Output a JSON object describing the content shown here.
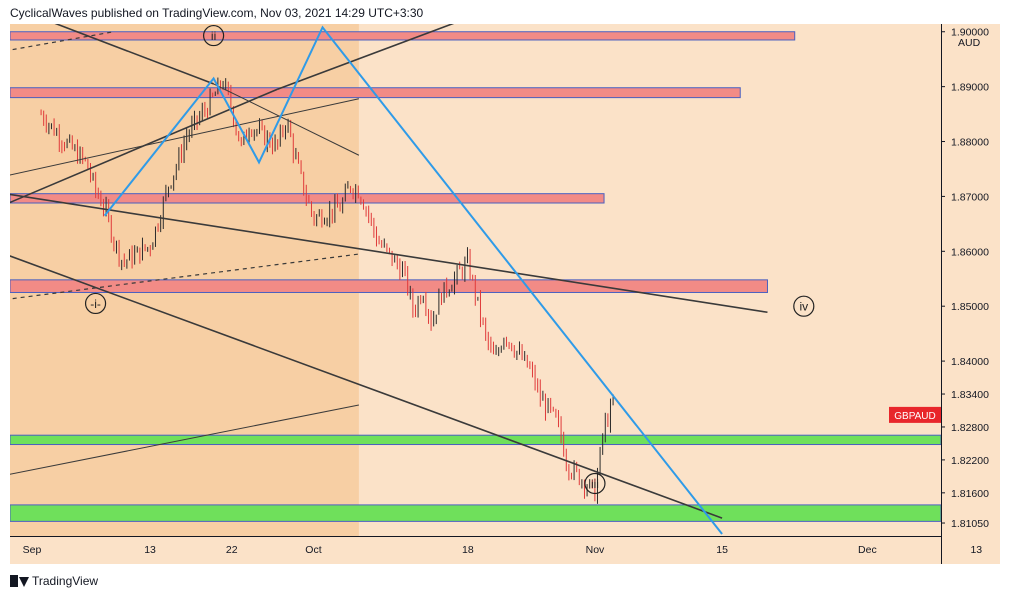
{
  "header": {
    "text": "CyclicalWaves published on TradingView.com, Nov 03, 2021 14:29 UTC+3:30"
  },
  "footer": {
    "brand": "TradingView"
  },
  "colors": {
    "background": "#fbe2c8",
    "shaded_region": "#f7cfa4",
    "candle_up": "#2b2b2b",
    "candle_down": "#e03a3a",
    "resistance_zone": "#f28b86",
    "support_zone": "#6fe05b",
    "trendline_blue": "#2f9be8",
    "channel_line": "#3a3a3a",
    "price_badge": "#e8262b"
  },
  "chart_data": {
    "type": "candlestick",
    "symbol": "GBPAUD",
    "currency_label": "AUD",
    "price_badge": "GBPAUD",
    "y_tick_labels": [
      "1.90000",
      "1.89000",
      "1.88000",
      "1.87000",
      "1.86000",
      "1.85000",
      "1.84000",
      "1.83400",
      "1.82800",
      "1.82200",
      "1.81600",
      "1.81050"
    ],
    "x_tick_labels": [
      "Sep",
      "13",
      "22",
      "Oct",
      "18",
      "Nov",
      "15",
      "Dec",
      "13"
    ],
    "ylim": [
      1.8085,
      1.9005
    ],
    "grid": false,
    "path": [
      [
        "2021-09-01",
        1.885
      ],
      [
        "2021-09-03",
        1.881
      ],
      [
        "2021-09-06",
        1.876
      ],
      [
        "2021-09-07",
        1.871
      ],
      [
        "2021-09-08",
        1.868
      ],
      [
        "2021-09-09",
        1.862
      ],
      [
        "2021-09-10",
        1.858
      ],
      [
        "2021-09-13",
        1.861
      ],
      [
        "2021-09-14",
        1.866
      ],
      [
        "2021-09-15",
        1.872
      ],
      [
        "2021-09-16",
        1.876
      ],
      [
        "2021-09-17",
        1.881
      ],
      [
        "2021-09-20",
        1.888
      ],
      [
        "2021-09-21",
        1.891
      ],
      [
        "2021-09-22",
        1.886
      ],
      [
        "2021-09-23",
        1.879
      ],
      [
        "2021-09-24",
        1.883
      ],
      [
        "2021-09-27",
        1.879
      ],
      [
        "2021-09-28",
        1.884
      ],
      [
        "2021-09-29",
        1.877
      ],
      [
        "2021-09-30",
        1.871
      ],
      [
        "2021-10-01",
        1.866
      ],
      [
        "2021-10-04",
        1.868
      ],
      [
        "2021-10-05",
        1.872
      ],
      [
        "2021-10-06",
        1.871
      ],
      [
        "2021-10-07",
        1.867
      ],
      [
        "2021-10-08",
        1.862
      ],
      [
        "2021-10-11",
        1.856
      ],
      [
        "2021-10-12",
        1.849
      ],
      [
        "2021-10-13",
        1.853
      ],
      [
        "2021-10-14",
        1.847
      ],
      [
        "2021-10-15",
        1.852
      ],
      [
        "2021-10-18",
        1.858
      ],
      [
        "2021-10-19",
        1.851
      ],
      [
        "2021-10-20",
        1.844
      ],
      [
        "2021-10-21",
        1.84
      ],
      [
        "2021-10-22",
        1.845
      ],
      [
        "2021-10-25",
        1.838
      ],
      [
        "2021-10-26",
        1.833
      ],
      [
        "2021-10-27",
        1.831
      ],
      [
        "2021-10-28",
        1.828
      ],
      [
        "2021-10-29",
        1.821
      ],
      [
        "2021-11-01",
        1.816
      ],
      [
        "2021-11-02",
        1.828
      ],
      [
        "2021-11-03",
        1.832
      ]
    ],
    "zones": [
      {
        "color": "resistance",
        "from": "2021-08-28",
        "to": "2021-11-23",
        "low": 1.8985,
        "high": 1.9
      },
      {
        "color": "resistance",
        "from": "2021-08-28",
        "to": "2021-11-17",
        "low": 1.888,
        "high": 1.8898
      },
      {
        "color": "resistance",
        "from": "2021-08-28",
        "to": "2021-11-02",
        "low": 1.8688,
        "high": 1.8705
      },
      {
        "color": "resistance",
        "from": "2021-08-28",
        "to": "2021-11-20",
        "low": 1.8525,
        "high": 1.8548
      },
      {
        "color": "support",
        "from": "2021-08-28",
        "to": "2021-12-16",
        "low": 1.8248,
        "high": 1.8265
      },
      {
        "color": "support",
        "from": "2021-08-28",
        "to": "2021-12-16",
        "low": 1.8108,
        "high": 1.8138
      }
    ],
    "shaded_region": {
      "from": "2021-08-28",
      "to": "2021-10-06"
    },
    "lines": [
      {
        "style": "channel",
        "from": [
          "2021-08-28",
          1.8705
        ],
        "to": [
          "2021-11-20",
          1.8489
        ]
      },
      {
        "style": "channel",
        "from": [
          "2021-08-28",
          1.8595
        ],
        "to": [
          "2021-11-15",
          1.8114
        ]
      },
      {
        "style": "channel-thin",
        "from": [
          "2021-08-28",
          1.8737
        ],
        "to": [
          "2021-10-06",
          1.8878
        ]
      },
      {
        "style": "channel-thin",
        "from": [
          "2021-08-28",
          1.8192
        ],
        "to": [
          "2021-10-06",
          1.832
        ]
      },
      {
        "style": "dashed",
        "from": [
          "2021-08-28",
          1.8965
        ],
        "to": [
          "2021-09-09",
          1.9
        ]
      },
      {
        "style": "dashed",
        "from": [
          "2021-08-28",
          1.8512
        ],
        "to": [
          "2021-10-06",
          1.8595
        ]
      },
      {
        "style": "channel",
        "from": [
          "2021-09-01",
          1.9025
        ],
        "to": [
          "2021-09-20",
          1.8905
        ]
      },
      {
        "style": "channel-thin",
        "from": [
          "2021-09-20",
          1.8905
        ],
        "to": [
          "2021-10-06",
          1.8775
        ]
      },
      {
        "style": "channel",
        "from": [
          "2021-08-28",
          1.8685
        ],
        "to": [
          "2021-09-27",
          1.8895
        ]
      },
      {
        "style": "channel",
        "from": [
          "2021-09-27",
          1.8895
        ],
        "to": [
          "2021-10-18",
          1.9025
        ]
      }
    ],
    "wave_path": [
      [
        "2021-09-08",
        1.8665
      ],
      [
        "2021-09-20",
        1.8915
      ],
      [
        "2021-09-25",
        1.8762
      ],
      [
        "2021-10-02",
        1.9008
      ],
      [
        "2021-11-15",
        1.8085
      ]
    ],
    "labels": [
      {
        "text": "ii",
        "date": "2021-09-20",
        "price": 1.8993
      },
      {
        "text": "-i-",
        "date": "2021-09-07",
        "price": 1.8505
      },
      {
        "text": "iii",
        "date": "2021-11-01",
        "price": 1.8177
      },
      {
        "text": "iv",
        "date": "2021-11-24",
        "price": 1.85
      }
    ]
  }
}
